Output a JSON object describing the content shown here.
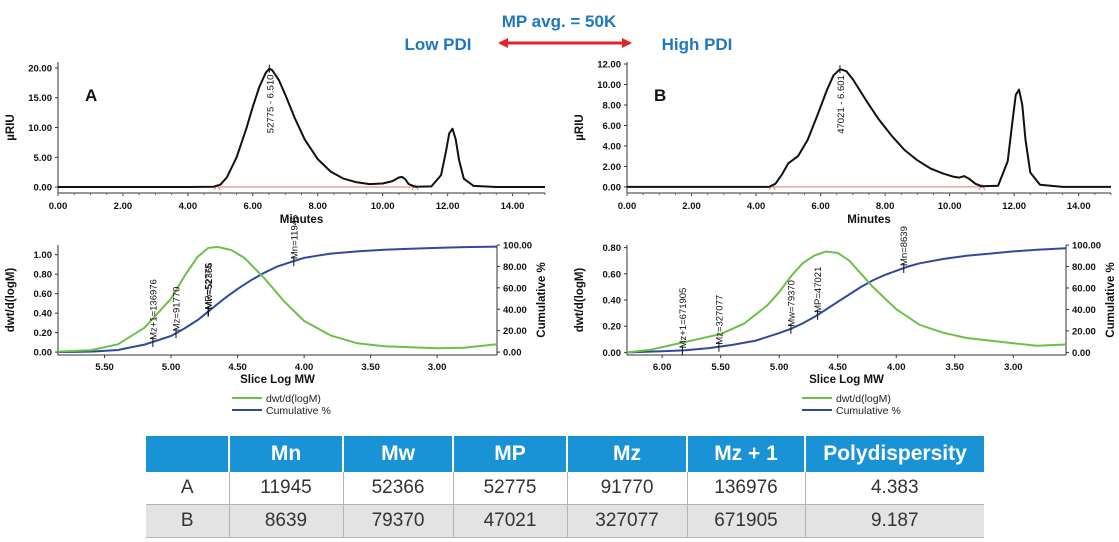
{
  "header": {
    "title": "MP avg. = 50K",
    "left_label": "Low PDI",
    "right_label": "High PDI",
    "title_color": "#1f77c0",
    "arrow_color": "#e3232b"
  },
  "legend": {
    "dwt": "dwt/d(logM)",
    "cum": "Cumulative %"
  },
  "colors": {
    "chrom": "#111111",
    "dwt": "#6cc04a",
    "cum": "#2f4a9c",
    "baseline": "#e57373"
  },
  "chart_data": [
    {
      "id": "A-chrom",
      "type": "line",
      "panel_label": "A",
      "xlabel": "Minutes",
      "ylabel": "µRIU",
      "xlim": [
        0,
        15
      ],
      "ylim": [
        -1,
        21
      ],
      "x_ticks": [
        "0.00",
        "2.00",
        "4.00",
        "6.00",
        "8.00",
        "10.00",
        "12.00",
        "14.00"
      ],
      "y_ticks": [
        "0.00",
        "5.00",
        "10.00",
        "15.00",
        "20.00"
      ],
      "peak_label": "52775 - 6.510",
      "baseline_range": [
        4.9,
        11.0
      ],
      "series": [
        {
          "x": [
            0,
            4.0,
            4.8,
            5.0,
            5.2,
            5.5,
            5.8,
            6.0,
            6.2,
            6.4,
            6.51,
            6.6,
            6.8,
            7.0,
            7.3,
            7.6,
            8.0,
            8.4,
            8.8,
            9.2,
            9.6,
            10.0,
            10.3,
            10.5,
            10.6,
            10.7,
            10.8,
            11.0,
            11.5,
            11.8,
            11.95,
            12.05,
            12.15,
            12.25,
            12.35,
            12.5,
            12.8,
            13.5,
            15.0
          ],
          "y": [
            0,
            0,
            0.05,
            0.4,
            1.6,
            5.0,
            9.8,
            13.5,
            16.8,
            19.2,
            19.9,
            19.6,
            18.0,
            15.5,
            11.5,
            8.0,
            4.7,
            2.6,
            1.4,
            0.8,
            0.5,
            0.6,
            1.0,
            1.6,
            1.7,
            1.3,
            0.5,
            0.05,
            0.1,
            2.0,
            6.0,
            9.0,
            9.8,
            8.0,
            4.6,
            1.4,
            0.2,
            0,
            0
          ]
        }
      ]
    },
    {
      "id": "B-chrom",
      "type": "line",
      "panel_label": "B",
      "xlabel": "Minutes",
      "ylabel": "µRIU",
      "xlim": [
        0,
        15
      ],
      "ylim": [
        -0.6,
        12.2
      ],
      "x_ticks": [
        "0.00",
        "2.00",
        "4.00",
        "6.00",
        "8.00",
        "10.00",
        "12.00",
        "14.00"
      ],
      "y_ticks": [
        "0.00",
        "2.00",
        "4.00",
        "6.00",
        "8.00",
        "10.00",
        "12.00"
      ],
      "peak_label": "47021 - 6.601",
      "baseline_range": [
        4.5,
        11.0
      ],
      "series": [
        {
          "x": [
            0,
            4.4,
            4.6,
            4.8,
            5.0,
            5.3,
            5.6,
            5.9,
            6.2,
            6.4,
            6.6,
            6.8,
            7.0,
            7.4,
            7.8,
            8.2,
            8.6,
            9.0,
            9.4,
            9.8,
            10.1,
            10.3,
            10.45,
            10.6,
            10.8,
            11.0,
            11.5,
            11.8,
            11.95,
            12.05,
            12.15,
            12.25,
            12.35,
            12.5,
            12.8,
            13.5,
            15.0
          ],
          "y": [
            0,
            0,
            0.3,
            1.2,
            2.3,
            3.0,
            4.6,
            7.0,
            9.5,
            10.9,
            11.5,
            11.3,
            10.5,
            8.5,
            6.6,
            5.0,
            3.6,
            2.6,
            1.8,
            1.3,
            1.0,
            0.9,
            1.05,
            0.8,
            0.3,
            0.05,
            0.1,
            2.5,
            6.5,
            9.0,
            9.5,
            8.0,
            4.6,
            1.4,
            0.2,
            0,
            0
          ]
        }
      ]
    },
    {
      "id": "A-dist",
      "type": "line",
      "xlabel": "Slice Log MW",
      "ylabel": "dwt/d(logM)",
      "ylabel_right": "Cumulative %",
      "xlim": [
        5.85,
        2.55
      ],
      "ylim": [
        -0.03,
        1.1
      ],
      "ylim_right": [
        -2.7,
        100
      ],
      "x_ticks": [
        "5.50",
        "5.00",
        "4.50",
        "4.00",
        "3.50",
        "3.00"
      ],
      "y_ticks": [
        "0.00",
        "0.20",
        "0.40",
        "0.60",
        "0.80",
        "1.00"
      ],
      "y_ticks_right": [
        "0.00",
        "20.00",
        "40.00",
        "60.00",
        "80.00",
        "100.00"
      ],
      "markers": [
        {
          "label": "Mz+1=136976",
          "logmw": 5.137
        },
        {
          "label": "Mz=91770",
          "logmw": 4.963
        },
        {
          "label": "MP=52775",
          "logmw": 4.722
        },
        {
          "label": "Mw=52366",
          "logmw": 4.719
        },
        {
          "label": "Mn=11945",
          "logmw": 4.077
        }
      ],
      "series": [
        {
          "name": "dwt/d(logM)",
          "x": [
            5.85,
            5.6,
            5.4,
            5.2,
            5.0,
            4.9,
            4.8,
            4.72,
            4.65,
            4.55,
            4.45,
            4.3,
            4.15,
            4.0,
            3.8,
            3.6,
            3.4,
            3.2,
            3.0,
            2.8,
            2.55
          ],
          "y": [
            0.005,
            0.02,
            0.08,
            0.25,
            0.55,
            0.78,
            0.98,
            1.07,
            1.08,
            1.05,
            0.97,
            0.76,
            0.52,
            0.32,
            0.17,
            0.09,
            0.06,
            0.05,
            0.04,
            0.045,
            0.08
          ]
        },
        {
          "name": "Cumulative %",
          "x": [
            5.85,
            5.6,
            5.4,
            5.2,
            5.0,
            4.9,
            4.8,
            4.7,
            4.6,
            4.5,
            4.4,
            4.3,
            4.2,
            4.1,
            4.0,
            3.9,
            3.8,
            3.6,
            3.4,
            3.2,
            3.0,
            2.8,
            2.55
          ],
          "y": [
            0,
            0.5,
            2,
            7,
            15,
            22,
            30,
            40,
            50,
            59,
            67,
            74,
            80,
            84,
            88,
            90,
            92,
            94,
            95.5,
            96.5,
            97.3,
            98,
            98.5
          ]
        }
      ]
    },
    {
      "id": "B-dist",
      "type": "line",
      "xlabel": "Slice Log MW",
      "ylabel": "dwt/d(logM)",
      "ylabel_right": "Cumulative %",
      "xlim": [
        6.3,
        2.55
      ],
      "ylim": [
        -0.02,
        0.82
      ],
      "ylim_right": [
        -2.4,
        100
      ],
      "x_ticks": [
        "6.00",
        "5.50",
        "5.00",
        "4.50",
        "4.00",
        "3.50",
        "3.00"
      ],
      "y_ticks": [
        "0.00",
        "0.20",
        "0.40",
        "0.60",
        "0.80"
      ],
      "y_ticks_right": [
        "0.00",
        "20.00",
        "40.00",
        "60.00",
        "80.00",
        "100.00"
      ],
      "markers": [
        {
          "label": "Mz+1=671905",
          "logmw": 5.827
        },
        {
          "label": "Mz=327077",
          "logmw": 5.515
        },
        {
          "label": "Mw=79370",
          "logmw": 4.9
        },
        {
          "label": "MP=47021",
          "logmw": 4.672
        },
        {
          "label": "Mn=8639",
          "logmw": 3.936
        }
      ],
      "series": [
        {
          "name": "dwt/d(logM)",
          "x": [
            6.3,
            6.1,
            5.9,
            5.7,
            5.5,
            5.3,
            5.1,
            5.0,
            4.9,
            4.8,
            4.7,
            4.6,
            4.5,
            4.4,
            4.3,
            4.2,
            4.0,
            3.8,
            3.6,
            3.4,
            3.2,
            3.0,
            2.8,
            2.55
          ],
          "y": [
            0.0,
            0.02,
            0.06,
            0.1,
            0.14,
            0.22,
            0.36,
            0.46,
            0.58,
            0.68,
            0.74,
            0.77,
            0.76,
            0.7,
            0.6,
            0.5,
            0.33,
            0.21,
            0.15,
            0.11,
            0.09,
            0.07,
            0.05,
            0.06
          ]
        },
        {
          "name": "Cumulative %",
          "x": [
            6.3,
            6.0,
            5.8,
            5.6,
            5.4,
            5.2,
            5.0,
            4.9,
            4.8,
            4.7,
            4.6,
            4.5,
            4.4,
            4.3,
            4.2,
            4.1,
            4.0,
            3.9,
            3.8,
            3.6,
            3.4,
            3.2,
            3.0,
            2.8,
            2.55
          ],
          "y": [
            0,
            1,
            2,
            4,
            7,
            11,
            18,
            22,
            27,
            33,
            40,
            47,
            54,
            61,
            67,
            72,
            76,
            80,
            83,
            87,
            90,
            92,
            94,
            95.5,
            97
          ]
        }
      ]
    }
  ],
  "table": {
    "headers": [
      "",
      "Mn",
      "Mw",
      "MP",
      "Mz",
      "Mz + 1",
      "Polydispersity"
    ],
    "rows": [
      [
        "A",
        "11945",
        "52366",
        "52775",
        "91770",
        "136976",
        "4.383"
      ],
      [
        "B",
        "8639",
        "79370",
        "47021",
        "327077",
        "671905",
        "9.187"
      ]
    ]
  }
}
